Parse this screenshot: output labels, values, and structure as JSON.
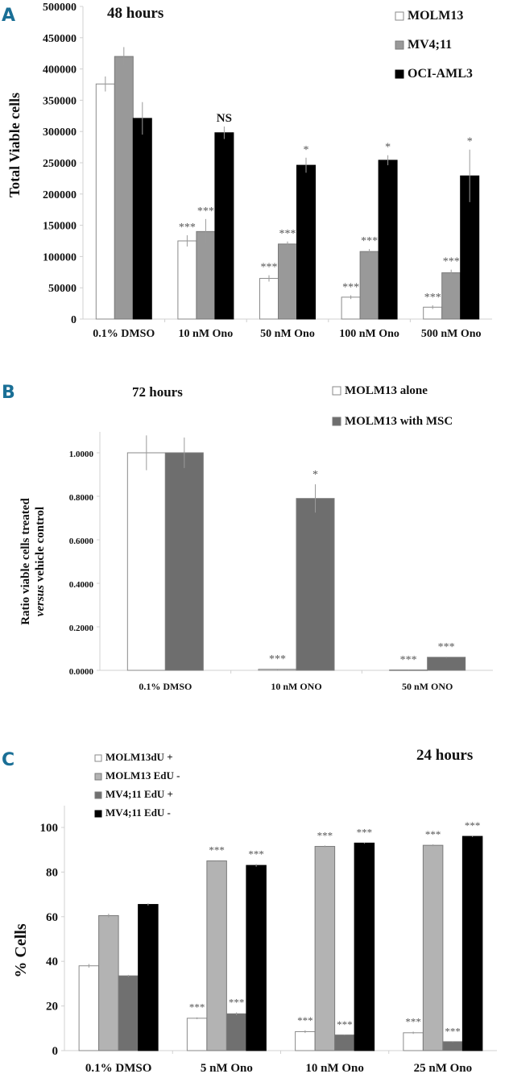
{
  "chart_data": [
    {
      "panel": "A",
      "type": "bar",
      "title": "48 hours",
      "xlabel": "",
      "ylabel": "Total Viable cells",
      "ylim": [
        0,
        500000
      ],
      "yticks": [
        "0",
        "50000",
        "100000",
        "150000",
        "200000",
        "250000",
        "300000",
        "350000",
        "400000",
        "450000",
        "500000"
      ],
      "categories": [
        "0.1% DMSO",
        "10 nM Ono",
        "50 nM Ono",
        "100 nM Ono",
        "500 nM Ono"
      ],
      "legend_position": "top-right",
      "grid": false,
      "series": [
        {
          "name": "MOLM13",
          "color": "#ffffff",
          "values": [
            376000,
            125000,
            65000,
            35000,
            19000
          ],
          "errors": [
            12000,
            9000,
            5000,
            3000,
            3000
          ],
          "sig": [
            "",
            "***",
            "***",
            "***",
            "***"
          ]
        },
        {
          "name": "MV4;11",
          "color": "#999999",
          "values": [
            420000,
            140000,
            120000,
            108000,
            74000
          ],
          "errors": [
            15000,
            20000,
            4000,
            4000,
            5000
          ],
          "sig": [
            "",
            "***",
            "***",
            "***",
            "***"
          ]
        },
        {
          "name": "OCI-AML3",
          "color": "#000000",
          "values": [
            321000,
            298000,
            246000,
            254000,
            229000
          ],
          "errors": [
            26000,
            10000,
            12000,
            8000,
            42000
          ],
          "sig": [
            "",
            "NS",
            "*",
            "*",
            "*"
          ]
        }
      ]
    },
    {
      "panel": "B",
      "type": "bar",
      "title": "72 hours",
      "xlabel": "",
      "ylabel": "Ratio viable cells treated versus vehicle control",
      "ylim": [
        0,
        1.2
      ],
      "yticks": [
        "0.0000",
        "0.2000",
        "0.4000",
        "0.6000",
        "0.8000",
        "1.0000"
      ],
      "categories": [
        "0.1% DMSO",
        "10 nM ONO",
        "50 nM ONO"
      ],
      "legend_position": "top-right",
      "grid": false,
      "series": [
        {
          "name": "MOLM13 alone",
          "color": "#ffffff",
          "values": [
            1.0,
            0.005,
            0.002
          ],
          "errors": [
            0.08,
            0.002,
            0.001
          ],
          "sig": [
            "",
            "***",
            "***"
          ]
        },
        {
          "name": "MOLM13 with MSC",
          "color": "#6e6e6e",
          "values": [
            1.0,
            0.79,
            0.06
          ],
          "errors": [
            0.07,
            0.065,
            0.003
          ],
          "sig": [
            "",
            "*",
            "***"
          ]
        }
      ]
    },
    {
      "panel": "C",
      "type": "bar",
      "title": "24 hours",
      "xlabel": "",
      "ylabel": "% Cells",
      "ylim": [
        0,
        100
      ],
      "yticks": [
        "0",
        "20",
        "40",
        "60",
        "80",
        "100"
      ],
      "categories": [
        "0.1% DMSO",
        "5 nM Ono",
        "10 nM Ono",
        "25 nM Ono"
      ],
      "legend_position": "top-left",
      "grid": false,
      "series": [
        {
          "name": "MOLM13dU +",
          "color": "#ffffff",
          "values": [
            38,
            14.5,
            8.5,
            8
          ],
          "errors": [
            0.8,
            0.4,
            0.6,
            0.5
          ],
          "sig": [
            "",
            "***",
            "***",
            "***"
          ]
        },
        {
          "name": "MOLM13 EdU -",
          "color": "#b3b3b3",
          "values": [
            60.5,
            85,
            91.5,
            92
          ],
          "errors": [
            0.8,
            0.3,
            0.4,
            0.4
          ],
          "sig": [
            "",
            "***",
            "***",
            "***"
          ]
        },
        {
          "name": "MV4;11 EdU +",
          "color": "#707070",
          "values": [
            33.5,
            16.5,
            7,
            4
          ],
          "errors": [
            0.4,
            0.6,
            0.2,
            0.2
          ],
          "sig": [
            "",
            "***",
            "***",
            "***"
          ]
        },
        {
          "name": "MV4;11 EdU -",
          "color": "#000000",
          "values": [
            65.5,
            83,
            93,
            96
          ],
          "errors": [
            0.5,
            0.6,
            0.3,
            0.3
          ],
          "sig": [
            "",
            "***",
            "***",
            "***"
          ]
        }
      ]
    }
  ],
  "panels": {
    "a": {
      "letter": "A",
      "title": "48 hours",
      "ylabel": "Total Viable cells",
      "legend": [
        "MOLM13",
        "MV4;11",
        "OCI-AML3"
      ]
    },
    "b": {
      "letter": "B",
      "title": "72 hours",
      "ylabel_line1": "Ratio viable cells treated",
      "ylabel_line2_italic": "versus",
      "ylabel_line2_rest": " vehicle control",
      "legend": [
        "MOLM13 alone",
        "MOLM13 with MSC"
      ]
    },
    "c": {
      "letter": "C",
      "title": "24 hours",
      "ylabel": "% Cells",
      "legend": [
        "MOLM13dU +",
        "MOLM13 EdU -",
        "MV4;11 EdU +",
        "MV4;11 EdU -"
      ]
    }
  }
}
